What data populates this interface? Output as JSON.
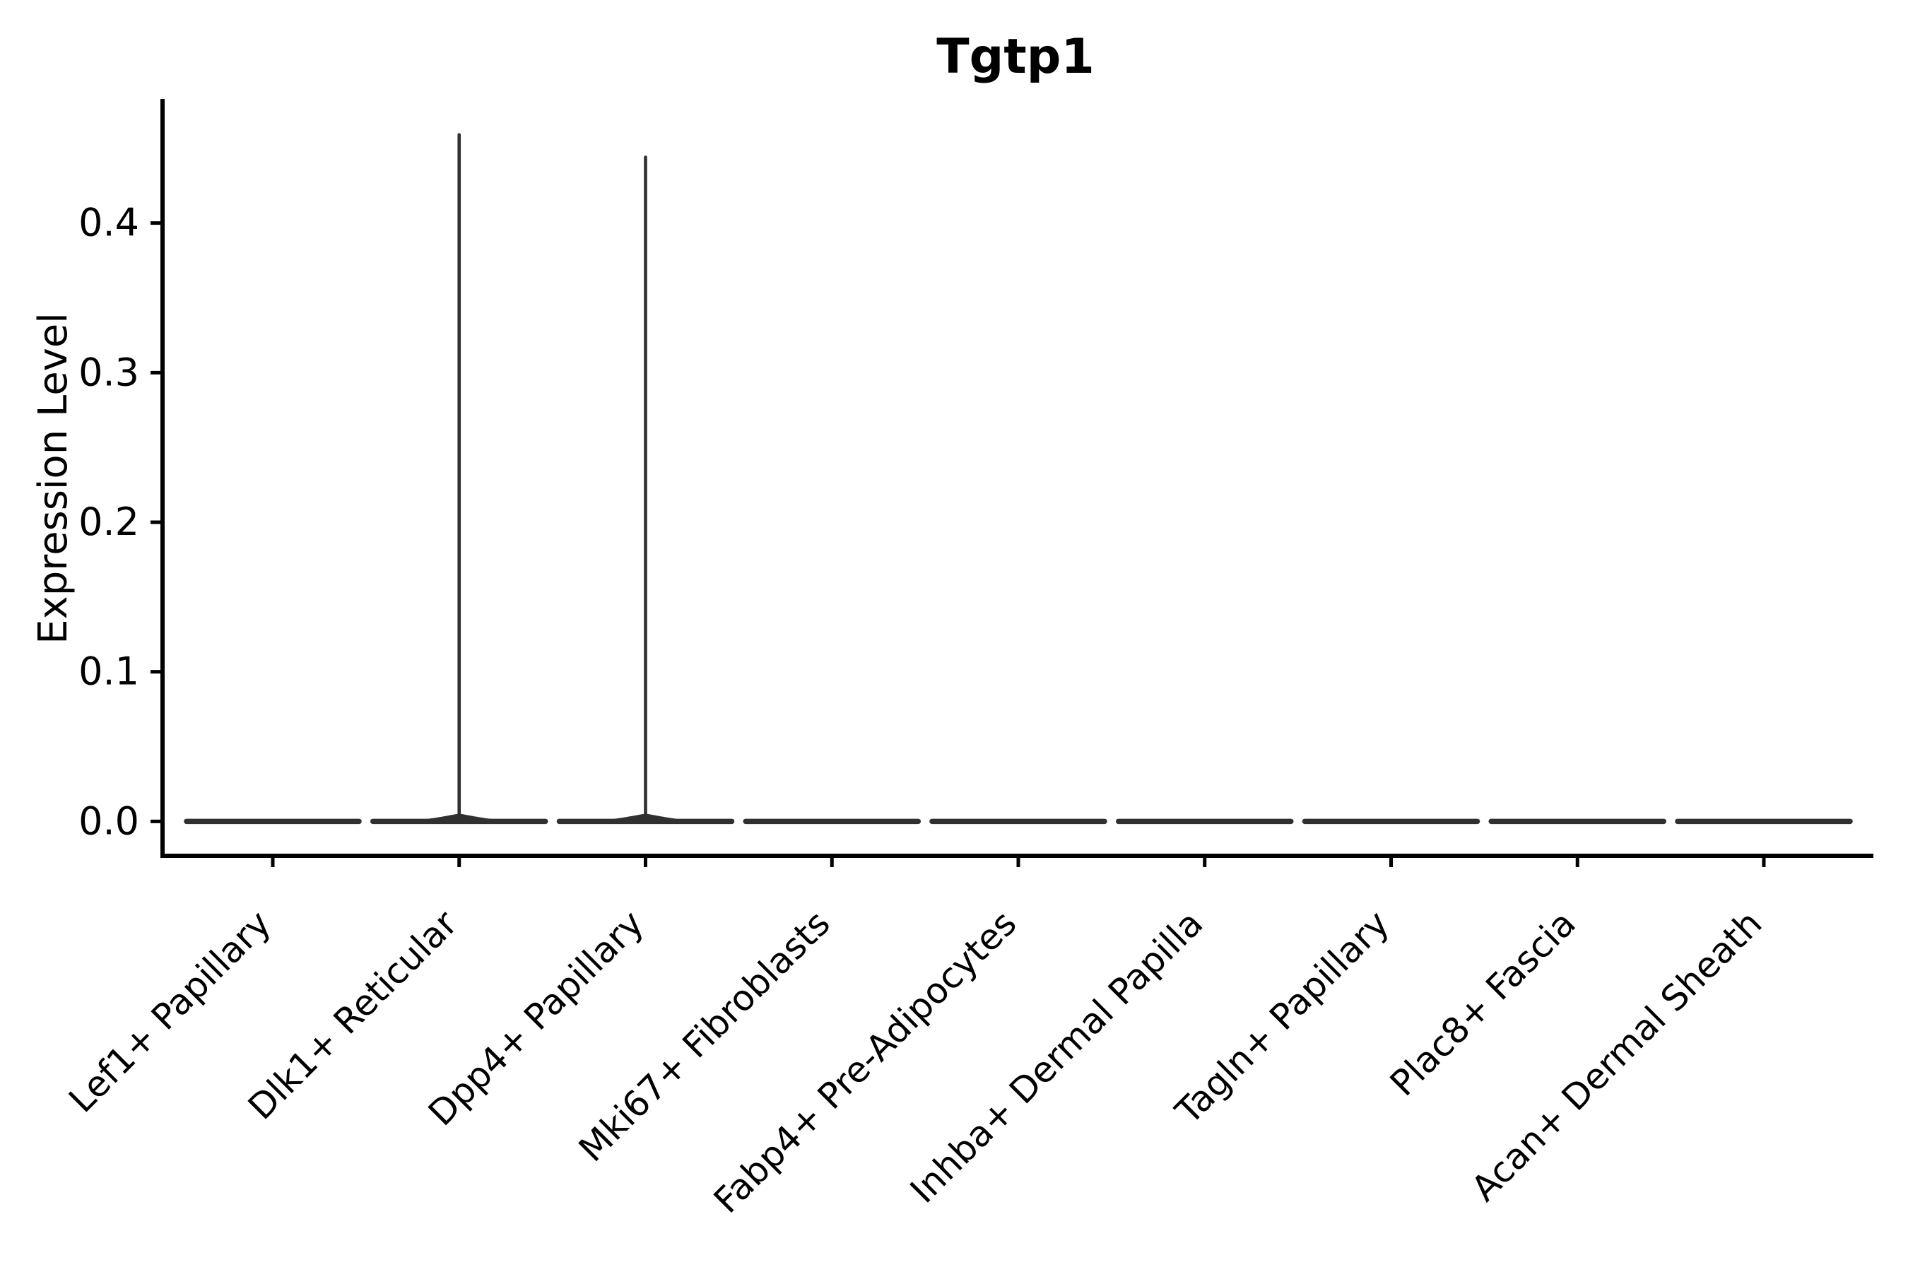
{
  "chart_data": {
    "type": "violin",
    "title": "Tgtp1",
    "xlabel": "",
    "ylabel": "Expression Level",
    "categories": [
      "Lef1+ Papillary",
      "Dlk1+ Reticular",
      "Dpp4+ Papillary",
      "Mki67+ Fibroblasts",
      "Fabp4+ Pre-Adipocytes",
      "Inhba+ Dermal Papilla",
      "Tagln+ Papillary",
      "Plac8+ Fascia",
      "Acan+ Dermal Sheath"
    ],
    "series": [
      {
        "name": "violin_body_value",
        "values": [
          0,
          0,
          0,
          0,
          0,
          0,
          0,
          0,
          0
        ]
      },
      {
        "name": "violin_peak_value",
        "values": [
          0,
          0.46,
          0.445,
          0,
          0,
          0,
          0,
          0,
          0
        ]
      }
    ],
    "yticks": [
      "0.0",
      "0.1",
      "0.2",
      "0.3",
      "0.4"
    ],
    "ylim": [
      -0.023,
      0.483
    ],
    "x_rotation_deg": 45,
    "grid": false,
    "legend_position": "none",
    "colors": {
      "violin": "#303030",
      "axis": "#000000",
      "text": "#000000",
      "background": "#ffffff"
    }
  }
}
